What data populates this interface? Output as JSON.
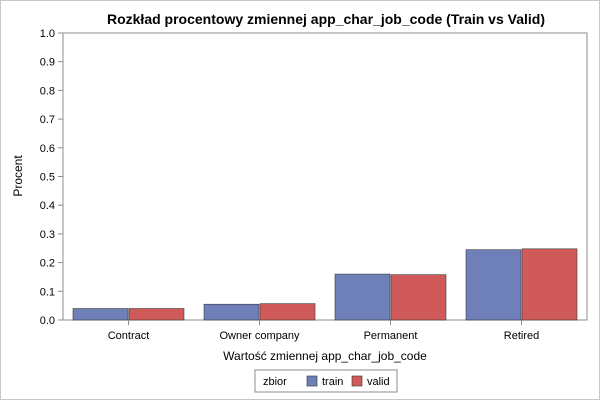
{
  "chart_data": {
    "type": "bar",
    "title": "Rozkład procentowy zmiennej app_char_job_code (Train vs Valid)",
    "xlabel": "Wartość zmiennej app_char_job_code",
    "ylabel": "Procent",
    "categories": [
      "Contract",
      "Owner company",
      "Permanent",
      "Retired"
    ],
    "series": [
      {
        "name": "train",
        "values": [
          0.04,
          0.055,
          0.16,
          0.245
        ],
        "color": "#6f7fb8"
      },
      {
        "name": "valid",
        "values": [
          0.04,
          0.057,
          0.158,
          0.248
        ],
        "color": "#d05a5a"
      }
    ],
    "ylim": [
      0,
      1.0
    ],
    "yticks": [
      0.0,
      0.1,
      0.2,
      0.3,
      0.4,
      0.5,
      0.6,
      0.7,
      0.8,
      0.9,
      1.0
    ],
    "ytick_labels": [
      "0.0",
      "0.1",
      "0.2",
      "0.3",
      "0.4",
      "0.5",
      "0.6",
      "0.7",
      "0.8",
      "0.9",
      "1.0"
    ],
    "grid": false,
    "legend": {
      "title": "zbior",
      "placement": "bottom-center"
    }
  }
}
